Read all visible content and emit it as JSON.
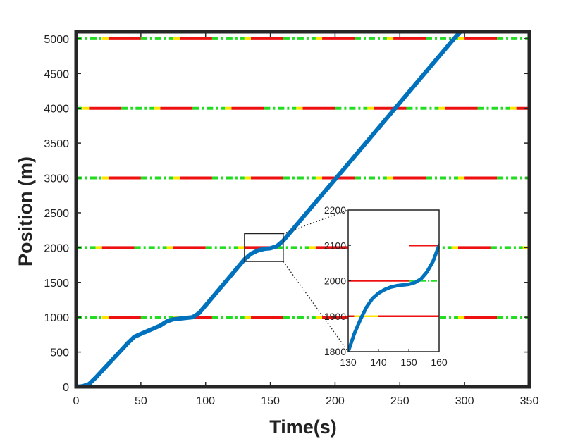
{
  "chart_data": {
    "type": "line",
    "xlabel": "Time(s)",
    "ylabel": "Position (m)",
    "xlim": [
      0,
      350
    ],
    "ylim": [
      0,
      5100
    ],
    "xticks": [
      "0",
      "50",
      "100",
      "150",
      "200",
      "250",
      "300",
      "350"
    ],
    "yticks": [
      "0",
      "500",
      "1000",
      "1500",
      "2000",
      "2500",
      "3000",
      "3500",
      "4000",
      "4500",
      "5000"
    ],
    "grid": false,
    "series": [
      {
        "color": "#0072BD",
        "x": [
          0,
          5,
          10,
          15,
          20,
          25,
          30,
          35,
          40,
          45,
          50,
          55,
          60,
          65,
          70,
          75,
          80,
          85,
          90,
          95,
          100,
          110,
          120,
          130,
          135,
          140,
          145,
          150,
          155,
          160,
          170,
          180,
          190,
          200,
          210,
          220,
          230,
          240,
          250,
          260,
          270,
          280,
          290,
          300,
          310,
          315
        ],
        "y": [
          0,
          8,
          40,
          130,
          230,
          330,
          430,
          530,
          630,
          720,
          760,
          800,
          840,
          880,
          940,
          970,
          980,
          990,
          1000,
          1060,
          1170,
          1390,
          1610,
          1830,
          1910,
          1955,
          1980,
          1990,
          2020,
          2100,
          2320,
          2540,
          2760,
          2980,
          3200,
          3420,
          3640,
          3860,
          4080,
          4300,
          4520,
          4740,
          4960,
          5170,
          5330,
          5400
        ]
      }
    ],
    "signal_lines": [
      {
        "position": 0,
        "phases": [
          {
            "state": "green",
            "start": 0,
            "end": 25
          },
          {
            "state": "yellow",
            "start": 25,
            "end": 30
          },
          {
            "state": "red",
            "start": 30,
            "end": 55
          }
        ],
        "cycle": 55,
        "offset": 0
      },
      {
        "position": 1000,
        "phases": [
          {
            "state": "green",
            "start": 0,
            "end": 25
          },
          {
            "state": "yellow",
            "start": 25,
            "end": 30
          },
          {
            "state": "red",
            "start": 30,
            "end": 55
          }
        ],
        "cycle": 55,
        "offset": -5
      },
      {
        "position": 2000,
        "phases": [
          {
            "state": "green",
            "start": 0,
            "end": 25
          },
          {
            "state": "yellow",
            "start": 25,
            "end": 30
          },
          {
            "state": "red",
            "start": 30,
            "end": 55
          }
        ],
        "cycle": 55,
        "offset": -10
      },
      {
        "position": 3000,
        "phases": [
          {
            "state": "green",
            "start": 0,
            "end": 25
          },
          {
            "state": "yellow",
            "start": 25,
            "end": 30
          },
          {
            "state": "red",
            "start": 30,
            "end": 55
          }
        ],
        "cycle": 55,
        "offset": -5
      },
      {
        "position": 4000,
        "phases": [
          {
            "state": "green",
            "start": 0,
            "end": 25
          },
          {
            "state": "yellow",
            "start": 25,
            "end": 30
          },
          {
            "state": "red",
            "start": 30,
            "end": 55
          }
        ],
        "cycle": 55,
        "offset": -20
      },
      {
        "position": 5000,
        "phases": [
          {
            "state": "green",
            "start": 0,
            "end": 25
          },
          {
            "state": "yellow",
            "start": 25,
            "end": 30
          },
          {
            "state": "red",
            "start": 30,
            "end": 55
          }
        ],
        "cycle": 55,
        "offset": -5
      }
    ],
    "signal_colors": {
      "green": "#22DD22",
      "yellow": "#FFE600",
      "red": "#EE1111"
    },
    "inset": {
      "xlim": [
        130,
        160
      ],
      "ylim": [
        1800,
        2200
      ],
      "xticks": [
        "130",
        "140",
        "150",
        "160"
      ],
      "yticks": [
        "1800",
        "1900",
        "2000",
        "2100",
        "2200"
      ],
      "highlight_box": {
        "x": [
          130,
          160
        ],
        "y": [
          1800,
          2200
        ]
      },
      "signal_position": 2000,
      "signal_red_until": 150,
      "secondary_lines": [
        {
          "position": 1900,
          "segments": [
            {
              "state": "red",
              "start": 130,
              "end": 132
            },
            {
              "state": "yellow",
              "start": 132,
              "end": 140
            },
            {
              "state": "red",
              "start": 140,
              "end": 160
            }
          ]
        },
        {
          "position": 2100,
          "segments": [
            {
              "state": "red",
              "start": 150,
              "end": 160
            }
          ]
        }
      ]
    }
  }
}
